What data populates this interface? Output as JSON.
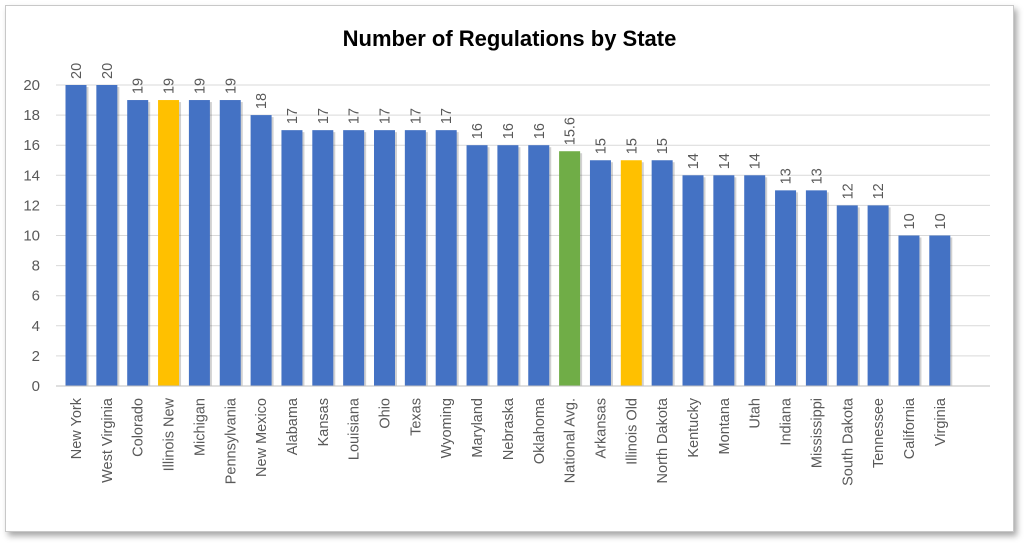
{
  "chart_data": {
    "type": "bar",
    "title": "Number of Regulations by State",
    "xlabel": "",
    "ylabel": "",
    "ylim": [
      0,
      20
    ],
    "yticks": [
      "0",
      "2",
      "4",
      "6",
      "8",
      "10",
      "12",
      "14",
      "16",
      "18",
      "20"
    ],
    "grid": true,
    "categories": [
      "New York",
      "West Virginia",
      "Colorado",
      "Illinois New",
      "Michigan",
      "Pennsylvania",
      "New Mexico",
      "Alabama",
      "Kansas",
      "Louisiana",
      "Ohio",
      "Texas",
      "Wyoming",
      "Maryland",
      "Nebraska",
      "Oklahoma",
      "National Avg.",
      "Arkansas",
      "Illinois Old",
      "North Dakota",
      "Kentucky",
      "Montana",
      "Utah",
      "Indiana",
      "Mississippi",
      "South Dakota",
      "Tennessee",
      "California",
      "Virginia"
    ],
    "values": [
      20,
      20,
      19,
      19,
      19,
      19,
      18,
      17,
      17,
      17,
      17,
      17,
      17,
      16,
      16,
      16,
      15.6,
      15,
      15,
      15,
      14,
      14,
      14,
      13,
      13,
      12,
      12,
      10,
      10
    ],
    "value_labels": [
      "20",
      "20",
      "19",
      "19",
      "19",
      "19",
      "18",
      "17",
      "17",
      "17",
      "17",
      "17",
      "17",
      "16",
      "16",
      "16",
      "15.6",
      "15",
      "15",
      "15",
      "14",
      "14",
      "14",
      "13",
      "13",
      "12",
      "12",
      "10",
      "10"
    ],
    "bar_colors": [
      "#4472c4",
      "#4472c4",
      "#4472c4",
      "#ffc000",
      "#4472c4",
      "#4472c4",
      "#4472c4",
      "#4472c4",
      "#4472c4",
      "#4472c4",
      "#4472c4",
      "#4472c4",
      "#4472c4",
      "#4472c4",
      "#4472c4",
      "#4472c4",
      "#70ad47",
      "#4472c4",
      "#ffc000",
      "#4472c4",
      "#4472c4",
      "#4472c4",
      "#4472c4",
      "#4472c4",
      "#4472c4",
      "#4472c4",
      "#4472c4",
      "#4472c4",
      "#4472c4"
    ],
    "gridline_color": "#d9d9d9",
    "axis_color": "#bfbfbf"
  }
}
